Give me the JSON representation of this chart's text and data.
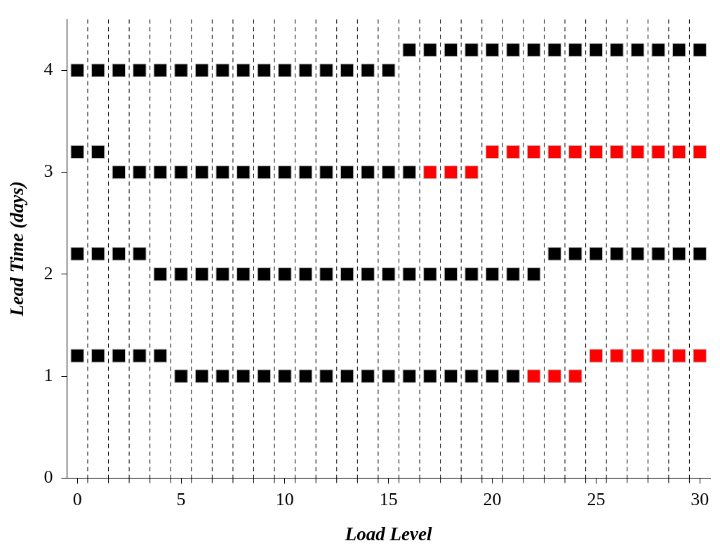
{
  "chart_data": {
    "type": "scatter",
    "xlabel": "Load Level",
    "ylabel": "Lead Time (days)",
    "xlim": [
      -0.5,
      30.5
    ],
    "ylim": [
      0,
      4.5
    ],
    "xticks": [
      0,
      5,
      10,
      15,
      20,
      25,
      30
    ],
    "yticks": [
      0,
      1,
      2,
      3,
      4
    ],
    "marker": "square",
    "legend": false,
    "grid": false,
    "ref_lines": [
      {
        "axis": "x",
        "value": 0.5,
        "line_style": "dashed",
        "color": "#000000"
      },
      {
        "axis": "x",
        "value": 1.5,
        "line_style": "dashed",
        "color": "#000000"
      },
      {
        "axis": "x",
        "value": 2.5,
        "line_style": "dashed",
        "color": "#000000"
      },
      {
        "axis": "x",
        "value": 3.5,
        "line_style": "dashed",
        "color": "#000000"
      },
      {
        "axis": "x",
        "value": 4.5,
        "line_style": "dashed",
        "color": "#000000"
      },
      {
        "axis": "x",
        "value": 5.5,
        "line_style": "dashed",
        "color": "#000000"
      },
      {
        "axis": "x",
        "value": 6.5,
        "line_style": "dashed",
        "color": "#000000"
      },
      {
        "axis": "x",
        "value": 7.5,
        "line_style": "dashed",
        "color": "#000000"
      },
      {
        "axis": "x",
        "value": 8.5,
        "line_style": "dashed",
        "color": "#000000"
      },
      {
        "axis": "x",
        "value": 9.5,
        "line_style": "dashed",
        "color": "#000000"
      },
      {
        "axis": "x",
        "value": 10.5,
        "line_style": "dashed",
        "color": "#000000"
      },
      {
        "axis": "x",
        "value": 11.5,
        "line_style": "dashed",
        "color": "#000000"
      },
      {
        "axis": "x",
        "value": 12.5,
        "line_style": "dashed",
        "color": "#000000"
      },
      {
        "axis": "x",
        "value": 13.5,
        "line_style": "dashed",
        "color": "#000000"
      },
      {
        "axis": "x",
        "value": 14.5,
        "line_style": "dashed",
        "color": "#000000"
      },
      {
        "axis": "x",
        "value": 15.5,
        "line_style": "dashed",
        "color": "#000000"
      },
      {
        "axis": "x",
        "value": 16.5,
        "line_style": "dashed",
        "color": "#000000"
      },
      {
        "axis": "x",
        "value": 17.5,
        "line_style": "dashed",
        "color": "#000000"
      },
      {
        "axis": "x",
        "value": 18.5,
        "line_style": "dashed",
        "color": "#000000"
      },
      {
        "axis": "x",
        "value": 19.5,
        "line_style": "dashed",
        "color": "#000000"
      },
      {
        "axis": "x",
        "value": 20.5,
        "line_style": "dashed",
        "color": "#000000"
      },
      {
        "axis": "x",
        "value": 21.5,
        "line_style": "dashed",
        "color": "#000000"
      },
      {
        "axis": "x",
        "value": 22.5,
        "line_style": "dashed",
        "color": "#000000"
      },
      {
        "axis": "x",
        "value": 23.5,
        "line_style": "dashed",
        "color": "#000000"
      },
      {
        "axis": "x",
        "value": 24.5,
        "line_style": "dashed",
        "color": "#000000"
      },
      {
        "axis": "x",
        "value": 25.5,
        "line_style": "dashed",
        "color": "#000000"
      },
      {
        "axis": "x",
        "value": 26.5,
        "line_style": "dashed",
        "color": "#000000"
      },
      {
        "axis": "x",
        "value": 27.5,
        "line_style": "dashed",
        "color": "#000000"
      },
      {
        "axis": "x",
        "value": 28.5,
        "line_style": "dashed",
        "color": "#000000"
      },
      {
        "axis": "x",
        "value": 29.5,
        "line_style": "dashed",
        "color": "#000000"
      }
    ],
    "series": [
      {
        "color": "#000000",
        "x": [
          0,
          1,
          2,
          3,
          4,
          5,
          6,
          7,
          8,
          9,
          10,
          11,
          12,
          13,
          14,
          15,
          16,
          17,
          18,
          19,
          20,
          21,
          22,
          23,
          24,
          25,
          26,
          27,
          28,
          29,
          30
        ],
        "values": [
          4,
          4,
          4,
          4,
          4,
          4,
          4,
          4,
          4,
          4,
          4,
          4,
          4,
          4,
          4,
          4,
          4.2,
          4.2,
          4.2,
          4.2,
          4.2,
          4.2,
          4.2,
          4.2,
          4.2,
          4.2,
          4.2,
          4.2,
          4.2,
          4.2,
          4.2
        ]
      },
      {
        "color": "#000000",
        "x": [
          0,
          1,
          2,
          3,
          4,
          5,
          6,
          7,
          8,
          9,
          10,
          11,
          12,
          13,
          14,
          15,
          16
        ],
        "values": [
          3.2,
          3.2,
          3,
          3,
          3,
          3,
          3,
          3,
          3,
          3,
          3,
          3,
          3,
          3,
          3,
          3,
          3
        ]
      },
      {
        "color": "#ff0000",
        "x": [
          17,
          18,
          19,
          20,
          21,
          22,
          23,
          24,
          25,
          26,
          27,
          28,
          29,
          30
        ],
        "values": [
          3,
          3,
          3,
          3.2,
          3.2,
          3.2,
          3.2,
          3.2,
          3.2,
          3.2,
          3.2,
          3.2,
          3.2,
          3.2
        ]
      },
      {
        "color": "#000000",
        "x": [
          0,
          1,
          2,
          3,
          4,
          5,
          6,
          7,
          8,
          9,
          10,
          11,
          12,
          13,
          14,
          15,
          16,
          17,
          18,
          19,
          20,
          21,
          22,
          23,
          24,
          25,
          26,
          27,
          28,
          29,
          30
        ],
        "values": [
          2.2,
          2.2,
          2.2,
          2.2,
          2,
          2,
          2,
          2,
          2,
          2,
          2,
          2,
          2,
          2,
          2,
          2,
          2,
          2,
          2,
          2,
          2,
          2,
          2,
          2.2,
          2.2,
          2.2,
          2.2,
          2.2,
          2.2,
          2.2,
          2.2
        ]
      },
      {
        "color": "#000000",
        "x": [
          0,
          1,
          2,
          3,
          4,
          5,
          6,
          7,
          8,
          9,
          10,
          11,
          12,
          13,
          14,
          15,
          16,
          17,
          18,
          19,
          20,
          21
        ],
        "values": [
          1.2,
          1.2,
          1.2,
          1.2,
          1.2,
          1,
          1,
          1,
          1,
          1,
          1,
          1,
          1,
          1,
          1,
          1,
          1,
          1,
          1,
          1,
          1,
          1
        ]
      },
      {
        "color": "#ff0000",
        "x": [
          22,
          23,
          24,
          25,
          26,
          27,
          28,
          29,
          30
        ],
        "values": [
          1,
          1,
          1,
          1.2,
          1.2,
          1.2,
          1.2,
          1.2,
          1.2
        ]
      }
    ]
  }
}
